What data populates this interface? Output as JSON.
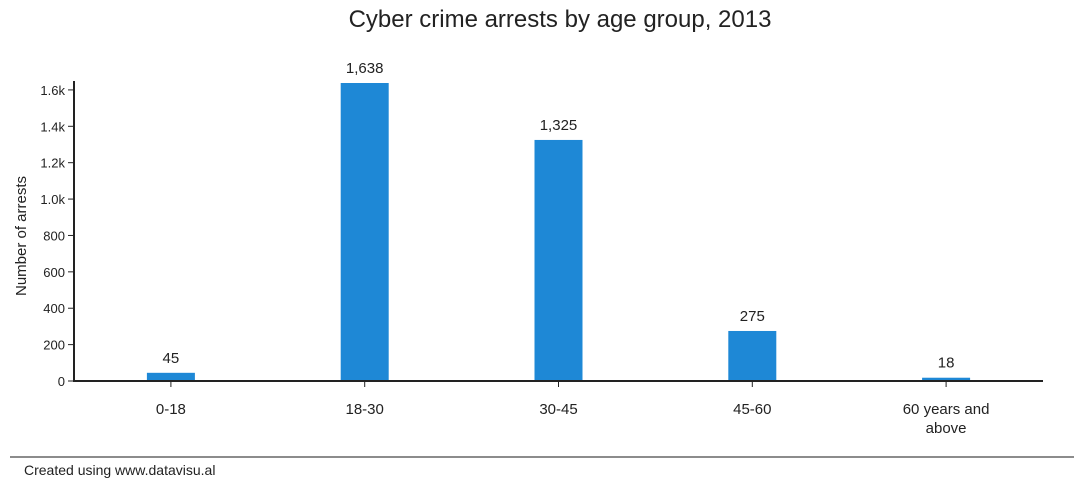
{
  "chart_data": {
    "type": "bar",
    "title": "Cyber crime arrests by age group, 2013",
    "xlabel": "",
    "ylabel": "Number of arrests",
    "categories": [
      [
        "0-18"
      ],
      [
        "18-30"
      ],
      [
        "30-45"
      ],
      [
        "45-60"
      ],
      [
        "60 years and",
        "above"
      ]
    ],
    "values": [
      45,
      1638,
      1325,
      275,
      18
    ],
    "value_labels": [
      "45",
      "1,638",
      "1,325",
      "275",
      "18"
    ],
    "ylim": [
      0,
      1638
    ],
    "yticks": [
      0,
      200,
      400,
      600,
      800,
      1000,
      1200,
      1400,
      1600
    ],
    "ytick_labels": [
      "0",
      "200",
      "400",
      "600",
      "800",
      "1.0k",
      "1.2k",
      "1.4k",
      "1.6k"
    ],
    "grid": false,
    "legend": "none",
    "bar_color": "#1e88d6"
  },
  "footer": {
    "credit": "Created using www.datavisu.al"
  }
}
